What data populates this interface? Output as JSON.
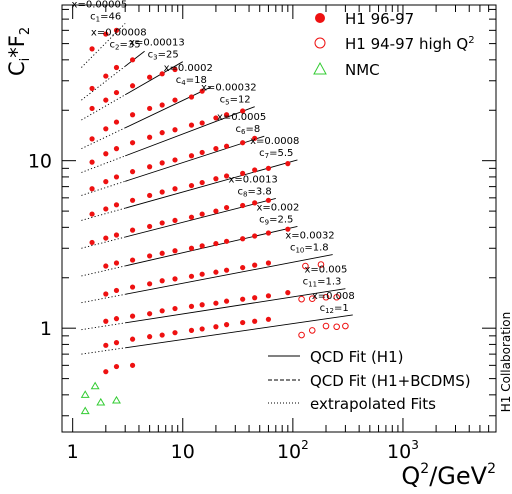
{
  "chart_data": {
    "type": "scatter",
    "y_axis_label_main": "C",
    "y_axis_label_sub": "i",
    "y_axis_label_star": "*",
    "y_axis_label_f": "F",
    "y_axis_label_fsub": "2",
    "x_axis_label_q": "Q",
    "x_axis_label_sup": "2",
    "x_axis_label_unit": "/GeV",
    "x_axis_label_unitsup": "2",
    "x_log": true,
    "y_log": true,
    "xlim": [
      0.8,
      7000
    ],
    "ylim": [
      0.24,
      85
    ],
    "x_tick_labels": [
      {
        "value": 1,
        "text": "1"
      },
      {
        "value": 10,
        "text": "10"
      },
      {
        "value": 100,
        "base": "10",
        "exp": "2"
      },
      {
        "value": 1000,
        "base": "10",
        "exp": "3"
      }
    ],
    "y_tick_labels": [
      {
        "value": 1,
        "text": "1"
      },
      {
        "value": 10,
        "text": "10"
      }
    ],
    "side_label": "H1 Collaboration",
    "legend": {
      "position": "top-right",
      "items": [
        {
          "marker": "filled-circle",
          "label": "H1 96-97",
          "color": "#ee1111"
        },
        {
          "marker": "open-circle",
          "label": "H1 94-97 high Q",
          "sup": "2",
          "color": "#ee1111"
        },
        {
          "marker": "open-triangle",
          "label": "NMC",
          "color": "#33cc33"
        }
      ]
    },
    "line_legend": {
      "position": "bottom-right",
      "items": [
        {
          "style": "solid",
          "label": "QCD Fit (H1)"
        },
        {
          "style": "dashed",
          "label": "QCD Fit (H1+BCDMS)"
        },
        {
          "style": "dotted",
          "label": "extrapolated Fits"
        }
      ]
    },
    "colors": {
      "h1": "#ee1111",
      "nmc": "#33cc33",
      "curve": "#000000"
    },
    "bins": [
      {
        "x_label": "x=0.00005",
        "c_main": "c",
        "c_sub": "1",
        "c_val": "=46",
        "h1": [
          [
            1.5,
            46.5
          ],
          [
            2.0,
            57
          ],
          [
            2.5,
            60
          ]
        ],
        "fit": [
          [
            1.2,
            36
          ],
          [
            3.0,
            66
          ]
        ],
        "fit_dotted_to": 3.0
      },
      {
        "x_label": "x=0.00008",
        "c_main": "c",
        "c_sub": "2",
        "c_val": "=35",
        "h1": [
          [
            1.5,
            27
          ],
          [
            2.0,
            32
          ],
          [
            2.5,
            36
          ],
          [
            3.5,
            40
          ]
        ],
        "fit": [
          [
            1.2,
            23
          ],
          [
            4.5,
            45
          ]
        ],
        "fit_dotted_to": 3.0
      },
      {
        "x_label": "x=0.00013",
        "c_main": "c",
        "c_sub": "3",
        "c_val": "=25",
        "h1": [
          [
            1.5,
            20.5
          ],
          [
            2.0,
            23
          ],
          [
            2.5,
            25.5
          ],
          [
            3.5,
            28
          ],
          [
            5.0,
            31.5
          ],
          [
            6.5,
            33
          ],
          [
            8.5,
            35
          ]
        ],
        "fit": [
          [
            1.2,
            17.5
          ],
          [
            10,
            39
          ]
        ],
        "fit_dotted_to": 3.0
      },
      {
        "x_label": "x=0.0002",
        "c_main": "c",
        "c_sub": "4",
        "c_val": "=18",
        "h1": [
          [
            1.5,
            13.5
          ],
          [
            2.0,
            15.5
          ],
          [
            2.5,
            17
          ],
          [
            3.5,
            18.8
          ],
          [
            5.0,
            20.5
          ],
          [
            6.5,
            21.5
          ],
          [
            8.5,
            23
          ],
          [
            12,
            24
          ],
          [
            15,
            26
          ]
        ],
        "fit": [
          [
            1.2,
            11.8
          ],
          [
            18,
            27.5
          ]
        ],
        "fit_dotted_to": 3.0
      },
      {
        "x_label": "x=0.00032",
        "c_main": "c",
        "c_sub": "5",
        "c_val": "=12",
        "h1": [
          [
            1.5,
            9.8
          ],
          [
            2.0,
            11
          ],
          [
            2.5,
            11.8
          ],
          [
            3.5,
            12.8
          ],
          [
            5.0,
            13.8
          ],
          [
            6.5,
            14.7
          ],
          [
            8.5,
            15.3
          ],
          [
            12,
            16.3
          ],
          [
            15,
            16.8
          ],
          [
            20,
            18
          ],
          [
            25,
            18.8
          ],
          [
            35,
            19.8
          ]
        ],
        "fit": [
          [
            1.2,
            8.5
          ],
          [
            45,
            21
          ]
        ],
        "fit_dotted_to": 3.0
      },
      {
        "x_label": "x=0.0005",
        "c_main": "c",
        "c_sub": "6",
        "c_val": "=8",
        "h1": [
          [
            1.5,
            6.8
          ],
          [
            2.0,
            7.5
          ],
          [
            2.5,
            8.0
          ],
          [
            3.5,
            8.6
          ],
          [
            5.0,
            9.2
          ],
          [
            6.5,
            9.7
          ],
          [
            8.5,
            10.1
          ],
          [
            12,
            10.7
          ],
          [
            15,
            11.2
          ],
          [
            20,
            11.8
          ],
          [
            25,
            12.2
          ],
          [
            35,
            12.8
          ],
          [
            45,
            13.6
          ]
        ],
        "fit": [
          [
            1.2,
            6.2
          ],
          [
            55,
            14
          ]
        ],
        "fit_dotted_to": 3.0
      },
      {
        "x_label": "x=0.0008",
        "c_main": "c",
        "c_sub": "7",
        "c_val": "=5.5",
        "h1": [
          [
            1.5,
            4.8
          ],
          [
            2.0,
            5.15
          ],
          [
            2.5,
            5.45
          ],
          [
            3.5,
            5.8
          ],
          [
            5.0,
            6.2
          ],
          [
            6.5,
            6.5
          ],
          [
            8.5,
            6.8
          ],
          [
            12,
            7.1
          ],
          [
            15,
            7.4
          ],
          [
            20,
            7.8
          ],
          [
            25,
            8.1
          ],
          [
            35,
            8.4
          ],
          [
            45,
            8.8
          ],
          [
            60,
            9.0
          ],
          [
            90,
            9.6
          ]
        ],
        "fit": [
          [
            1.2,
            4.4
          ],
          [
            110,
            10.1
          ]
        ],
        "fit_dotted_to": 3.0
      },
      {
        "x_label": "x=0.0013",
        "c_main": "c",
        "c_sub": "8",
        "c_val": "=3.8",
        "h1": [
          [
            1.5,
            3.25
          ],
          [
            2.0,
            3.45
          ],
          [
            2.5,
            3.6
          ],
          [
            3.5,
            3.85
          ],
          [
            5.0,
            4.05
          ],
          [
            6.5,
            4.25
          ],
          [
            8.5,
            4.4
          ],
          [
            12,
            4.6
          ],
          [
            15,
            4.8
          ],
          [
            20,
            5.0
          ],
          [
            25,
            5.25
          ],
          [
            35,
            5.4
          ],
          [
            45,
            5.6
          ],
          [
            60,
            5.8
          ]
        ],
        "fit": [
          [
            1.2,
            3.0
          ],
          [
            70,
            5.95
          ]
        ],
        "fit_dotted_to": 3.0
      },
      {
        "x_label": "x=0.002",
        "c_main": "c",
        "c_sub": "9",
        "c_val": "=2.5",
        "h1": [
          [
            2.0,
            2.35
          ],
          [
            2.5,
            2.45
          ],
          [
            3.5,
            2.55
          ],
          [
            5.0,
            2.7
          ],
          [
            6.5,
            2.8
          ],
          [
            8.5,
            2.9
          ],
          [
            12,
            3.0
          ],
          [
            15,
            3.1
          ],
          [
            20,
            3.2
          ],
          [
            25,
            3.3
          ],
          [
            35,
            3.42
          ],
          [
            45,
            3.55
          ],
          [
            60,
            3.7
          ],
          [
            90,
            3.9
          ]
        ],
        "fit": [
          [
            1.2,
            2.05
          ],
          [
            110,
            4.05
          ]
        ],
        "fit_dotted_to": 3.0
      },
      {
        "x_label": "x=0.0032",
        "c_main": "c",
        "c_sub": "10",
        "c_val": "=1.8",
        "h1": [
          [
            2.0,
            1.6
          ],
          [
            2.5,
            1.68
          ],
          [
            3.5,
            1.76
          ],
          [
            5.0,
            1.84
          ],
          [
            6.5,
            1.92
          ],
          [
            8.5,
            1.97
          ],
          [
            12,
            2.04
          ],
          [
            15,
            2.1
          ],
          [
            20,
            2.16
          ],
          [
            25,
            2.22
          ],
          [
            35,
            2.3
          ],
          [
            45,
            2.38
          ],
          [
            60,
            2.45
          ]
        ],
        "h1_high": [
          [
            130,
            2.35
          ],
          [
            180,
            2.4
          ]
        ],
        "fit": [
          [
            1.2,
            1.42
          ],
          [
            230,
            2.75
          ]
        ],
        "fit_dotted_to": 3.0
      },
      {
        "x_label": "x=0.005",
        "c_main": "c",
        "c_sub": "11",
        "c_val": "=1.3",
        "h1": [
          [
            2.0,
            1.1
          ],
          [
            2.5,
            1.14
          ],
          [
            3.5,
            1.18
          ],
          [
            5.0,
            1.22
          ],
          [
            6.5,
            1.27
          ],
          [
            8.5,
            1.31
          ],
          [
            12,
            1.35
          ],
          [
            15,
            1.38
          ],
          [
            20,
            1.41
          ],
          [
            25,
            1.45
          ],
          [
            35,
            1.49
          ],
          [
            45,
            1.52
          ],
          [
            60,
            1.56
          ],
          [
            90,
            1.63
          ]
        ],
        "h1_high": [
          [
            120,
            1.49
          ],
          [
            150,
            1.5
          ],
          [
            200,
            1.53
          ],
          [
            250,
            1.53
          ]
        ],
        "fit": [
          [
            1.2,
            0.98
          ],
          [
            300,
            1.72
          ]
        ],
        "fit_dotted_to": 3.0
      },
      {
        "x_label": "x=0.008",
        "c_main": "c",
        "c_sub": "12",
        "c_val": "=1",
        "h1": [
          [
            2.0,
            0.79
          ],
          [
            2.5,
            0.82
          ],
          [
            3.5,
            0.86
          ],
          [
            5.0,
            0.89
          ],
          [
            6.5,
            0.91
          ],
          [
            8.5,
            0.94
          ],
          [
            12,
            0.97
          ],
          [
            15,
            0.99
          ],
          [
            20,
            1.02
          ],
          [
            25,
            1.05
          ],
          [
            35,
            1.08
          ],
          [
            45,
            1.1
          ],
          [
            60,
            1.13
          ]
        ],
        "h1_high": [
          [
            120,
            0.91
          ],
          [
            150,
            0.97
          ],
          [
            200,
            1.03
          ],
          [
            250,
            1.02
          ],
          [
            300,
            1.03
          ]
        ],
        "fit": [
          [
            1.2,
            0.7
          ],
          [
            350,
            1.2
          ]
        ],
        "fit_dotted_to": 3.0
      }
    ],
    "extra_points": {
      "h1": [
        [
          2.0,
          0.55
        ],
        [
          2.5,
          0.59
        ],
        [
          3.5,
          0.6
        ]
      ],
      "nmc": [
        [
          1.3,
          0.4
        ],
        [
          1.6,
          0.45
        ],
        [
          1.3,
          0.32
        ],
        [
          1.8,
          0.36
        ],
        [
          2.5,
          0.37
        ]
      ]
    }
  }
}
